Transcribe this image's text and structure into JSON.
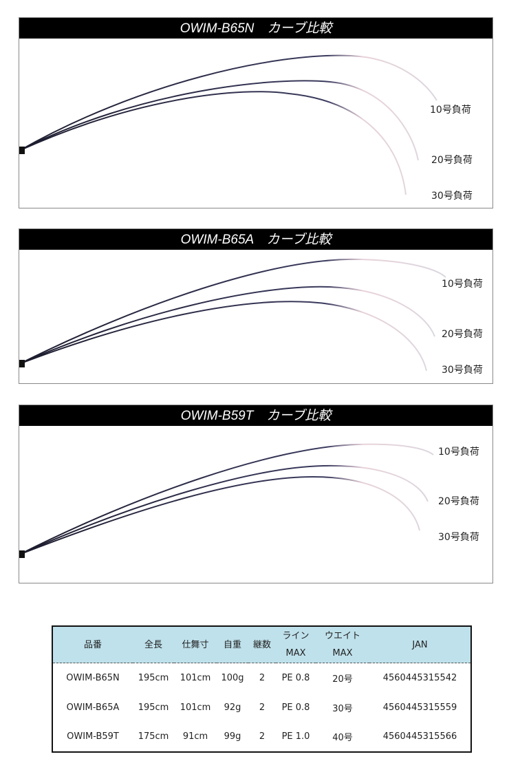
{
  "panels": [
    {
      "title": "OWIM-B65N　カーブ比較",
      "labels": [
        "10号負荷",
        "20号負荷",
        "30号負荷"
      ]
    },
    {
      "title": "OWIM-B65A　カーブ比較",
      "labels": [
        "10号負荷",
        "20号負荷",
        "30号負荷"
      ]
    },
    {
      "title": "OWIM-B59T　カーブ比較",
      "labels": [
        "10号負荷",
        "20号負荷",
        "30号負荷"
      ]
    }
  ],
  "table": {
    "headers": [
      "品番",
      "全長",
      "仕舞寸",
      "自重",
      "継数",
      [
        "ライン",
        "MAX"
      ],
      [
        "ウエイト",
        "MAX"
      ],
      "JAN"
    ],
    "rows": [
      [
        "OWIM-B65N",
        "195cm",
        "101cm",
        "100g",
        "2",
        "PE 0.8",
        "20号",
        "4560445315542"
      ],
      [
        "OWIM-B65A",
        "195cm",
        "101cm",
        "92g",
        "2",
        "PE 0.8",
        "30号",
        "4560445315559"
      ],
      [
        "OWIM-B59T",
        "175cm",
        "91cm",
        "99g",
        "2",
        "PE 1.0",
        "40号",
        "4560445315566"
      ]
    ]
  }
}
